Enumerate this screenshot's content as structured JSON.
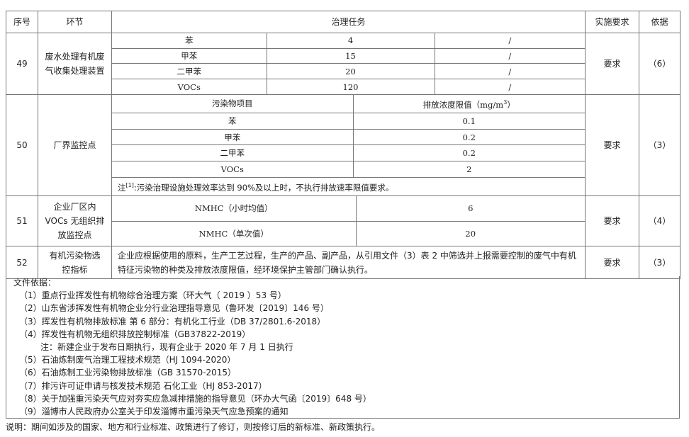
{
  "header": {
    "no": "序号",
    "stage": "环节",
    "task": "治理任务",
    "req": "实施要求",
    "basis": "依据"
  },
  "rows": [
    {
      "no": "49",
      "stage": "废水处理有机废气收集处理装置",
      "items": [
        [
          "苯",
          "4",
          "/"
        ],
        [
          "甲苯",
          "15",
          "/"
        ],
        [
          "二甲苯",
          "20",
          "/"
        ],
        [
          "VOCs",
          "120",
          "/"
        ]
      ],
      "req": "要求",
      "basis": "（6）"
    },
    {
      "no": "50",
      "stage": "厂界监控点",
      "head": [
        "污染物项目",
        "排放浓度限值（mg/m",
        "3",
        "）"
      ],
      "items": [
        [
          "苯",
          "0.1"
        ],
        [
          "甲苯",
          "0.2"
        ],
        [
          "二甲苯",
          "0.2"
        ],
        [
          "VOCs",
          "2"
        ]
      ],
      "note_prefix": "注",
      "note_sup": "[1]",
      "note": ":污染治理设施处理效率达到 90%及以上时，不执行排放速率限值要求。",
      "req": "要求",
      "basis": "（3）"
    },
    {
      "no": "51",
      "stage": "企业厂区内VOCs 无组织排放监控点",
      "items": [
        [
          "NMHC（小时均值）",
          "6"
        ],
        [
          "NMHC（单次值）",
          "20"
        ]
      ],
      "req": "要求",
      "basis": "（4）"
    },
    {
      "no": "52",
      "stage": "有机污染物选控指标",
      "text": "企业应根据使用的原料，生产工艺过程，生产的产品、副产品，从引用文件（3）表 2 中筛选并上报需要控制的废气中有机特征污染物的种类及排放浓度限值，经环境保护主管部门确认执行。",
      "req": "要求",
      "basis": "（3）"
    }
  ],
  "files": {
    "title": "文件依据：",
    "items": [
      "（1）重点行业挥发性有机物综合治理方案（环大气（ 2019 ）53 号）",
      "（2）山东省涉挥发性有机物企业分行业治理指导意见（鲁环发〔2019〕146 号）",
      "（3）挥发性有机物排放标准 第 6 部分：有机化工行业（DB 37/2801.6-2018）",
      "（4）挥发性有机物无组织排放控制标准（GB37822-2019）",
      "注：新建企业于发布日期执行，现有企业于 2020 年 7 月 1 日执行",
      "（5）石油炼制废气治理工程技术规范（HJ 1094-2020）",
      "（6）石油炼制工业污染物排放标准（GB 31570-2015）",
      "（7）排污许可证申请与核发技术规范 石化工业（HJ 853-2017）",
      "（8）关于加强重污染天气应对夯实应急减排措施的指导意见（环办大气函〔2019〕648 号）",
      "（9）淄博市人民政府办公室关于印发淄博市重污染天气应急预案的通知"
    ]
  },
  "footer": "说明：期间如涉及的国家、地方和行业标准、政策进行了修订，则按修订后的新标准、新政策执行。"
}
